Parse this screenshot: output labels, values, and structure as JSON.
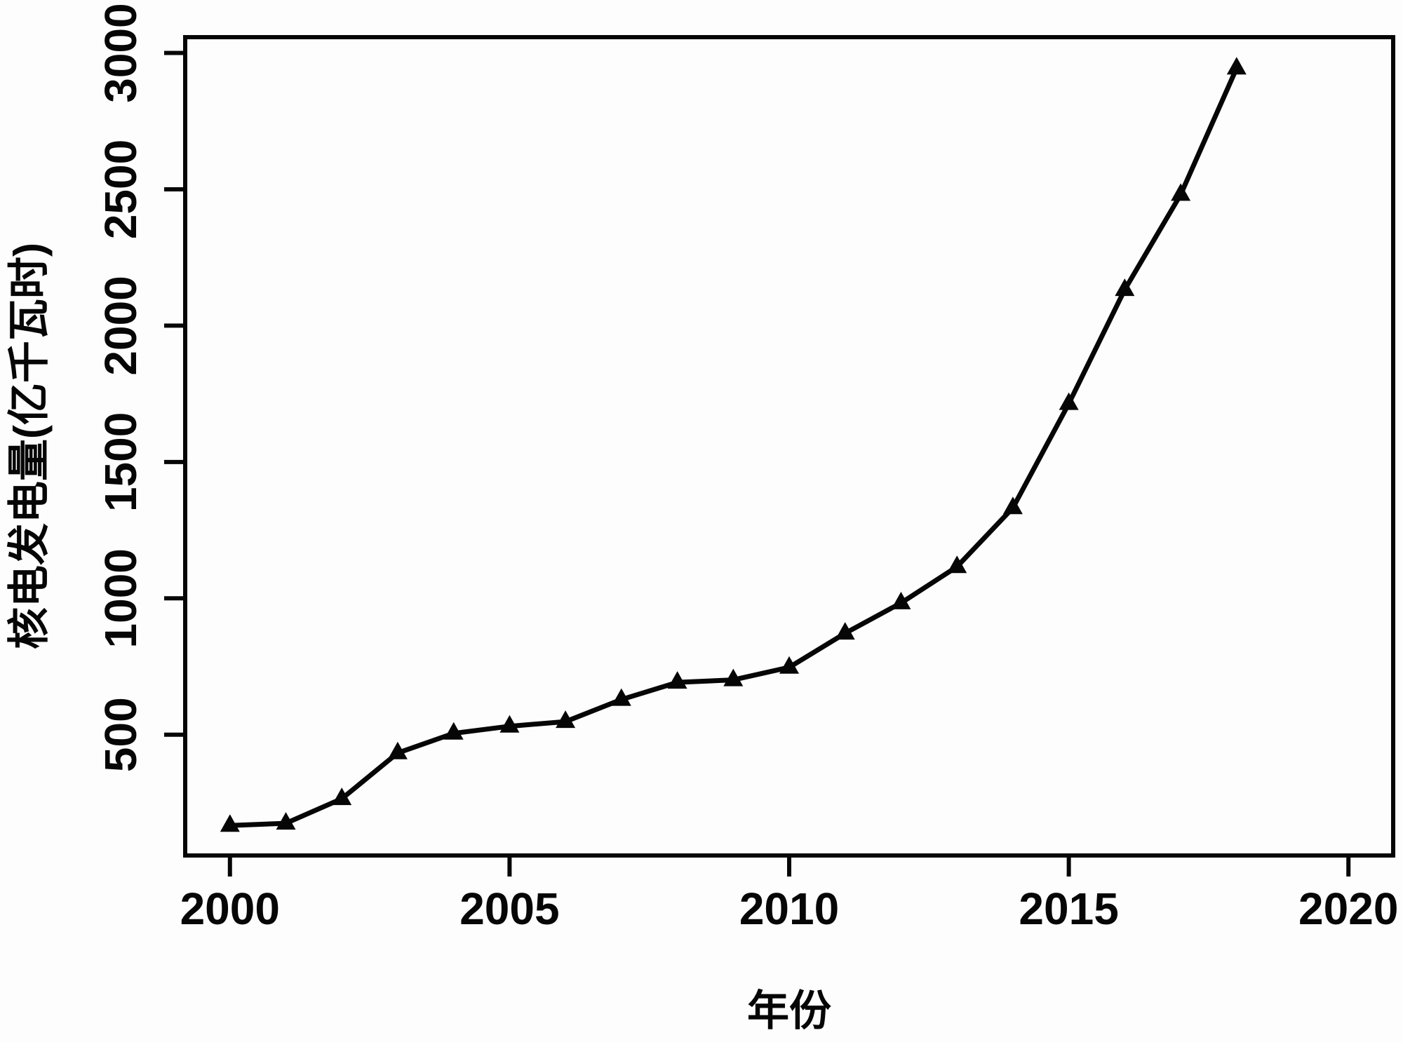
{
  "figure": {
    "background": "#fdfdfd",
    "title": ""
  },
  "chart_data": {
    "type": "line",
    "title": "",
    "xlabel": "年份",
    "ylabel": "核电发电量(亿千瓦时)",
    "x": [
      2000,
      2001,
      2002,
      2003,
      2004,
      2005,
      2006,
      2007,
      2008,
      2009,
      2010,
      2011,
      2012,
      2013,
      2014,
      2015,
      2016,
      2017,
      2018
    ],
    "series": [
      {
        "name": "核电发电量",
        "values": [
          167,
          175,
          265,
          433,
          505,
          531,
          548,
          629,
          692,
          701,
          747,
          872,
          983,
          1116,
          1332,
          1714,
          2132,
          2481,
          2944
        ]
      }
    ],
    "xticks": [
      2000,
      2005,
      2010,
      2015,
      2020
    ],
    "yticks": [
      500,
      1000,
      1500,
      2000,
      2500,
      3000
    ],
    "xlim": [
      1999.2,
      2020.8
    ],
    "ylim": [
      57,
      3058
    ],
    "grid": "off",
    "legend": "none",
    "marker": "filled-triangle-up",
    "line_color": "#060606",
    "marker_color": "#060606",
    "axis_color": "#060606"
  }
}
